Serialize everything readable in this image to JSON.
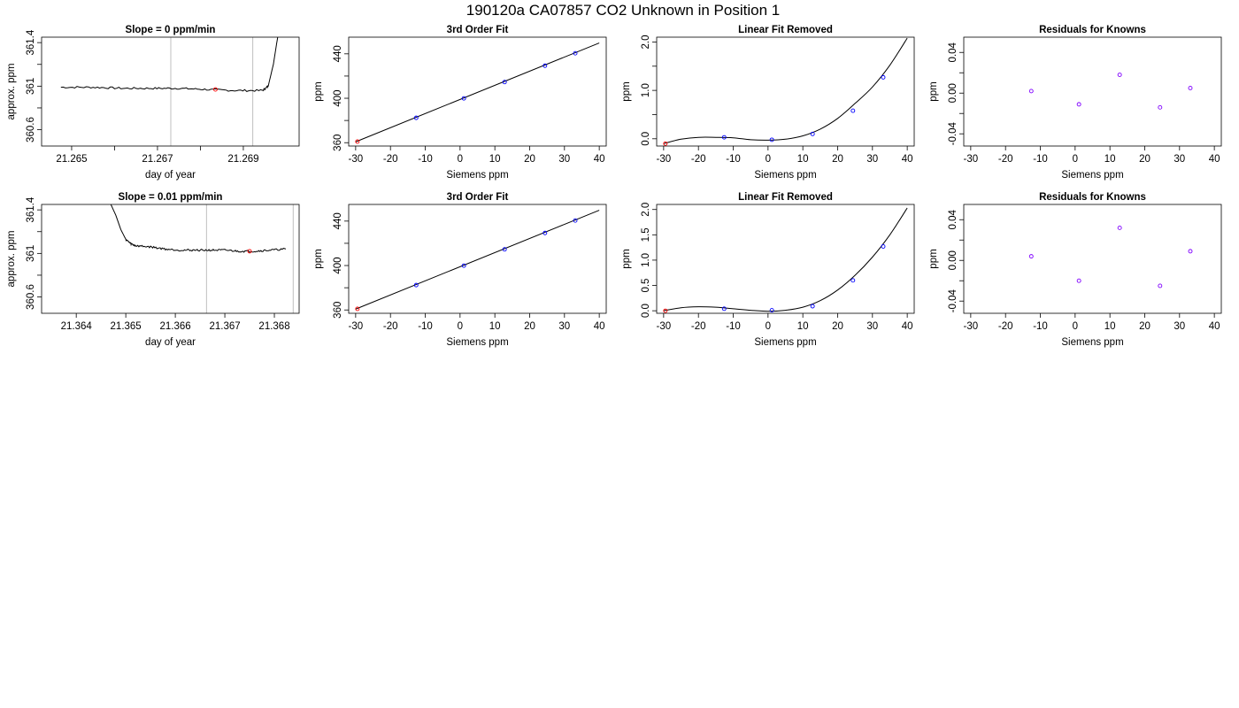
{
  "figure": {
    "title": "190120a     CA07857   CO2 Unknown in Position  1",
    "colors": {
      "known": "#0000ff",
      "unknown": "#ff0000",
      "residual": "#8000ff",
      "marker_line": "#bebebe",
      "trace": "#000000"
    }
  },
  "chart_data": [
    {
      "type": "line",
      "title": "Slope =  0  ppm/min",
      "xlabel": "day of year",
      "ylabel": "approx. ppm",
      "xlim": [
        21.2643,
        21.2703
      ],
      "ylim": [
        360.45,
        361.45
      ],
      "xticks": [
        21.265,
        21.267,
        21.269
      ],
      "xtick_minor": [
        21.266,
        21.268
      ],
      "yticks": [
        360.6,
        361.0,
        361.4
      ],
      "ytick_minor": [
        360.8,
        361.2
      ],
      "vlines": [
        21.26731,
        21.26922
      ],
      "trace": [
        [
          21.26475,
          360.99
        ],
        [
          21.2655,
          360.99
        ],
        [
          21.2662,
          360.98
        ],
        [
          21.2669,
          360.98
        ],
        [
          21.2675,
          360.98
        ],
        [
          21.2681,
          360.97
        ],
        [
          21.2688,
          360.96
        ],
        [
          21.26945,
          360.96
        ],
        [
          21.26958,
          361.0
        ],
        [
          21.2697,
          361.2
        ],
        [
          21.2698,
          361.45
        ]
      ],
      "unknown_point": [
        21.26835,
        360.97
      ]
    },
    {
      "type": "scatter",
      "title": "3rd Order Fit",
      "xlabel": "Siemens ppm",
      "ylabel": "ppm",
      "xlim": [
        -32,
        42
      ],
      "ylim": [
        357,
        455
      ],
      "xticks": [
        -30,
        -20,
        -10,
        0,
        10,
        20,
        30,
        40
      ],
      "yticks": [
        360,
        400,
        440
      ],
      "ytick_minor": [
        380,
        420
      ],
      "fit_line": [
        [
          -30,
          360.8
        ],
        [
          40,
          449.8
        ]
      ],
      "knowns": [
        [
          -12.6,
          382.4
        ],
        [
          1.1,
          399.9
        ],
        [
          12.8,
          414.6
        ],
        [
          24.4,
          429.3
        ],
        [
          33.1,
          440.5
        ]
      ],
      "unknown_point": [
        -29.5,
        361.0
      ]
    },
    {
      "type": "scatter",
      "title": "Linear Fit Removed",
      "xlabel": "Siemens ppm",
      "ylabel": "ppm",
      "xlim": [
        -32,
        42
      ],
      "ylim": [
        -0.15,
        2.1
      ],
      "xticks": [
        -30,
        -20,
        -10,
        0,
        10,
        20,
        30,
        40
      ],
      "yticks": [
        0.0,
        1.0,
        2.0
      ],
      "yticklabels": [
        "0.0",
        "1.0",
        "2.0"
      ],
      "ytick_minor": [
        0.5,
        1.5
      ],
      "fit_curve": [
        [
          -30,
          -0.1
        ],
        [
          -25,
          -0.01
        ],
        [
          -20,
          0.03
        ],
        [
          -15,
          0.03
        ],
        [
          -10,
          0.02
        ],
        [
          -5,
          -0.02
        ],
        [
          0,
          -0.03
        ],
        [
          5,
          -0.01
        ],
        [
          10,
          0.06
        ],
        [
          15,
          0.2
        ],
        [
          20,
          0.42
        ],
        [
          25,
          0.73
        ],
        [
          30,
          1.07
        ],
        [
          35,
          1.52
        ],
        [
          40,
          2.08
        ]
      ],
      "knowns": [
        [
          -12.6,
          0.03
        ],
        [
          1.1,
          -0.02
        ],
        [
          12.8,
          0.1
        ],
        [
          24.4,
          0.58
        ],
        [
          33.1,
          1.27
        ]
      ],
      "unknown_point": [
        -29.5,
        -0.1
      ]
    },
    {
      "type": "scatter",
      "title": "Residuals for Knowns",
      "xlabel": "Siemens ppm",
      "ylabel": "ppm",
      "xlim": [
        -32,
        42
      ],
      "ylim": [
        -0.052,
        0.055
      ],
      "xticks": [
        -30,
        -20,
        -10,
        0,
        10,
        20,
        30,
        40
      ],
      "yticks": [
        -0.04,
        0.0,
        0.04
      ],
      "yticklabels": [
        "-0.04",
        "0.00",
        "0.04"
      ],
      "ytick_minor": [
        -0.02,
        0.02
      ],
      "residuals": [
        [
          -12.6,
          0.002
        ],
        [
          1.1,
          -0.011
        ],
        [
          12.8,
          0.018
        ],
        [
          24.4,
          -0.014
        ],
        [
          33.1,
          0.005
        ]
      ]
    },
    {
      "type": "line",
      "title": "Slope =  0.01  ppm/min",
      "xlabel": "day of year",
      "ylabel": "approx. ppm",
      "xlim": [
        21.3633,
        21.3685
      ],
      "ylim": [
        360.45,
        361.45
      ],
      "xticks": [
        21.364,
        21.365,
        21.366,
        21.367,
        21.368
      ],
      "yticks": [
        360.6,
        361.0,
        361.4
      ],
      "ytick_minor": [
        360.8,
        361.2
      ],
      "vlines": [
        21.36663,
        21.36838
      ],
      "trace": [
        [
          21.3647,
          361.45
        ],
        [
          21.3648,
          361.35
        ],
        [
          21.3649,
          361.22
        ],
        [
          21.365,
          361.13
        ],
        [
          21.3651,
          361.09
        ],
        [
          21.3652,
          361.07
        ],
        [
          21.3655,
          361.06
        ],
        [
          21.3658,
          361.04
        ],
        [
          21.3661,
          361.03
        ],
        [
          21.3664,
          361.03
        ],
        [
          21.3667,
          361.03
        ],
        [
          21.367,
          361.03
        ],
        [
          21.3673,
          361.02
        ],
        [
          21.3676,
          361.02
        ],
        [
          21.3679,
          361.03
        ],
        [
          21.36823,
          361.04
        ]
      ],
      "unknown_point": [
        21.3675,
        361.02
      ]
    },
    {
      "type": "scatter",
      "title": "3rd Order Fit",
      "xlabel": "Siemens ppm",
      "ylabel": "ppm",
      "xlim": [
        -32,
        42
      ],
      "ylim": [
        357,
        455
      ],
      "xticks": [
        -30,
        -20,
        -10,
        0,
        10,
        20,
        30,
        40
      ],
      "yticks": [
        360,
        400,
        440
      ],
      "ytick_minor": [
        380,
        420
      ],
      "fit_line": [
        [
          -30,
          360.8
        ],
        [
          40,
          449.8
        ]
      ],
      "knowns": [
        [
          -12.6,
          382.4
        ],
        [
          1.1,
          399.9
        ],
        [
          12.8,
          414.6
        ],
        [
          24.4,
          429.3
        ],
        [
          33.1,
          440.5
        ]
      ],
      "unknown_point": [
        -29.5,
        361.0
      ]
    },
    {
      "type": "scatter",
      "title": "Linear Fit Removed",
      "xlabel": "Siemens ppm",
      "ylabel": "ppm",
      "xlim": [
        -32,
        42
      ],
      "ylim": [
        -0.05,
        2.1
      ],
      "xticks": [
        -30,
        -20,
        -10,
        0,
        10,
        20,
        30,
        40
      ],
      "yticks": [
        0.0,
        0.5,
        1.0,
        1.5,
        2.0
      ],
      "yticklabels": [
        "0.0",
        "0.5",
        "1.0",
        "1.5",
        "2.0"
      ],
      "fit_curve": [
        [
          -30,
          0.0
        ],
        [
          -25,
          0.06
        ],
        [
          -20,
          0.08
        ],
        [
          -15,
          0.07
        ],
        [
          -10,
          0.04
        ],
        [
          -5,
          0.01
        ],
        [
          0,
          -0.01
        ],
        [
          5,
          0.01
        ],
        [
          10,
          0.07
        ],
        [
          15,
          0.2
        ],
        [
          20,
          0.41
        ],
        [
          25,
          0.7
        ],
        [
          30,
          1.06
        ],
        [
          35,
          1.5
        ],
        [
          40,
          2.03
        ]
      ],
      "knowns": [
        [
          -12.6,
          0.04
        ],
        [
          1.1,
          0.01
        ],
        [
          12.8,
          0.09
        ],
        [
          24.4,
          0.6
        ],
        [
          33.1,
          1.27
        ]
      ],
      "unknown_point": [
        -29.5,
        0.0
      ]
    },
    {
      "type": "scatter",
      "title": "Residuals for Knowns",
      "xlabel": "Siemens ppm",
      "ylabel": "ppm",
      "xlim": [
        -32,
        42
      ],
      "ylim": [
        -0.052,
        0.055
      ],
      "xticks": [
        -30,
        -20,
        -10,
        0,
        10,
        20,
        30,
        40
      ],
      "yticks": [
        -0.04,
        0.0,
        0.04
      ],
      "yticklabels": [
        "-0.04",
        "0.00",
        "0.04"
      ],
      "ytick_minor": [
        -0.02,
        0.02
      ],
      "residuals": [
        [
          -12.6,
          0.004
        ],
        [
          1.1,
          -0.02
        ],
        [
          12.8,
          0.032
        ],
        [
          24.4,
          -0.025
        ],
        [
          33.1,
          0.009
        ]
      ]
    }
  ]
}
